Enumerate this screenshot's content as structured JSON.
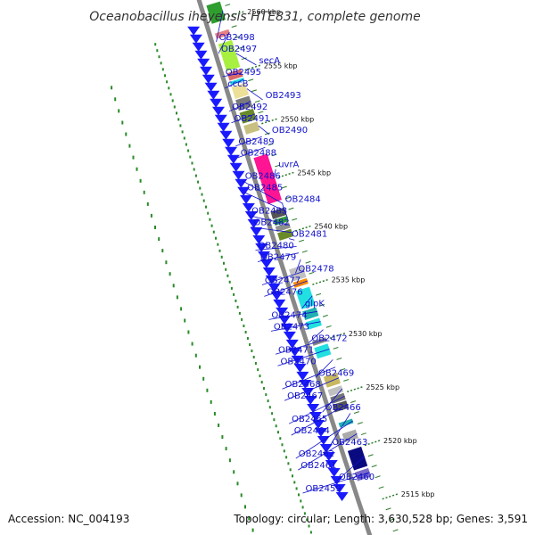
{
  "title": "Oceanobacillus iheyensis HTE831, complete genome",
  "footer": {
    "accession": "Accession: NC_004193",
    "summary": "Topology: circular; Length: 3,630,528 bp; Genes: 3,591"
  },
  "colors": {
    "backbone": "#888888",
    "arrow": "#1a1aff",
    "label": "#1010cc",
    "skew_dots": "#2a8a2a",
    "tick": "#2a7a2a"
  },
  "ticks": [
    {
      "kbp": 2560,
      "label": "2560 kbp"
    },
    {
      "kbp": 2555,
      "label": "2555 kbp"
    },
    {
      "kbp": 2550,
      "label": "2550 kbp"
    },
    {
      "kbp": 2545,
      "label": "2545 kbp"
    },
    {
      "kbp": 2540,
      "label": "2540 kbp"
    },
    {
      "kbp": 2535,
      "label": "2535 kbp"
    },
    {
      "kbp": 2530,
      "label": "2530 kbp"
    },
    {
      "kbp": 2525,
      "label": "2525 kbp"
    },
    {
      "kbp": 2520,
      "label": "2520 kbp"
    },
    {
      "kbp": 2515,
      "label": "2515 kbp"
    }
  ],
  "genes": [
    {
      "name": "OB2498",
      "start": 2561.5,
      "end": 2559.8,
      "color": "#2e9e2e"
    },
    {
      "name": "OB2497",
      "start": 2558.9,
      "end": 2558.4,
      "color": "#e88080"
    },
    {
      "name": "secA",
      "start": 2557.9,
      "end": 2555.4,
      "color": "#a8f040"
    },
    {
      "name": "OB2495",
      "start": 2555.2,
      "end": 2554.5,
      "color": "#d86a6a"
    },
    {
      "name": "cccB",
      "start": 2554.4,
      "end": 2554.1,
      "color": "#22e0e0"
    },
    {
      "name": "OB2493",
      "start": 2553.9,
      "end": 2552.8,
      "color": "#ece098"
    },
    {
      "name": "OB2492",
      "start": 2552.7,
      "end": 2551.7,
      "color": "#7a7a7a"
    },
    {
      "name": "OB2491",
      "start": 2551.5,
      "end": 2550.5,
      "color": "#6a8a2a"
    },
    {
      "name": "OB2490",
      "start": 2550.3,
      "end": 2549.5,
      "color": "#c8c080"
    },
    {
      "name": "OB2489",
      "start": 2549.3,
      "end": 2548.5,
      "color": "#ffffff"
    },
    {
      "name": "OB2488",
      "start": 2548.3,
      "end": 2547.5,
      "color": "#ffffff"
    },
    {
      "name": "uvrA",
      "start": 2547.3,
      "end": 2543.0,
      "color": "#ff1493"
    },
    {
      "name": "OB2486",
      "start": 2542.9,
      "end": 2542.4,
      "color": "#ffffff"
    },
    {
      "name": "OB2485",
      "start": 2542.3,
      "end": 2541.6,
      "color": "#555555"
    },
    {
      "name": "OB2484",
      "start": 2541.5,
      "end": 2541.0,
      "color": "#30a030"
    },
    {
      "name": "OB2483",
      "start": 2540.9,
      "end": 2540.4,
      "color": "#909090"
    },
    {
      "name": "OB2482",
      "start": 2540.3,
      "end": 2539.6,
      "color": "#6a8a2a"
    },
    {
      "name": "OB2481",
      "start": 2539.5,
      "end": 2539.0,
      "color": "#ffffff"
    },
    {
      "name": "OB2480",
      "start": 2538.9,
      "end": 2538.4,
      "color": "#ffffff"
    },
    {
      "name": "OB2479",
      "start": 2538.3,
      "end": 2537.8,
      "color": "#ffffff"
    },
    {
      "name": "OB2478",
      "start": 2537.7,
      "end": 2537.2,
      "color": "#ffffff"
    },
    {
      "name": "OB2477",
      "start": 2536.9,
      "end": 2535.8,
      "color": "#c0c0c0"
    },
    {
      "name": "OB2476",
      "start": 2535.7,
      "end": 2535.2,
      "color": "#ff8c00"
    },
    {
      "name": "glpK",
      "start": 2534.9,
      "end": 2533.2,
      "color": "#22e0e0"
    },
    {
      "name": "OB2474",
      "start": 2533.0,
      "end": 2532.2,
      "color": "#20b0b0"
    },
    {
      "name": "OB2473",
      "start": 2532.0,
      "end": 2531.3,
      "color": "#22e0e0"
    },
    {
      "name": "OB2472",
      "start": 2531.2,
      "end": 2530.6,
      "color": "#ffffff"
    },
    {
      "name": "OB2471",
      "start": 2530.2,
      "end": 2529.8,
      "color": "#888888"
    },
    {
      "name": "OB2470",
      "start": 2529.6,
      "end": 2528.6,
      "color": "#22e0e0"
    },
    {
      "name": "OB2469",
      "start": 2528.4,
      "end": 2527.8,
      "color": "#ffffff"
    },
    {
      "name": "OB2468",
      "start": 2527.6,
      "end": 2527.2,
      "color": "#ffffff"
    },
    {
      "name": "OB2467",
      "start": 2526.9,
      "end": 2525.9,
      "color": "#c8b860"
    },
    {
      "name": "OB2466",
      "start": 2525.7,
      "end": 2525.1,
      "color": "#c0c0c0"
    },
    {
      "name": "OB2465",
      "start": 2525.0,
      "end": 2524.4,
      "color": "#777777"
    },
    {
      "name": "OB2464",
      "start": 2524.3,
      "end": 2523.6,
      "color": "#555555"
    },
    {
      "name": "OB2463",
      "start": 2523.4,
      "end": 2522.8,
      "color": "#ffffff"
    },
    {
      "name": "OB2462",
      "start": 2522.6,
      "end": 2522.2,
      "color": "#20b0b0"
    },
    {
      "name": "OB2461",
      "start": 2521.6,
      "end": 2520.8,
      "color": "#aaaaaa"
    },
    {
      "name": "OB2460",
      "start": 2520.0,
      "end": 2518.2,
      "color": "#0a0a80"
    },
    {
      "name": "OB2459",
      "start": 2518.0,
      "end": 2517.2,
      "color": "#7a6ac8"
    }
  ]
}
